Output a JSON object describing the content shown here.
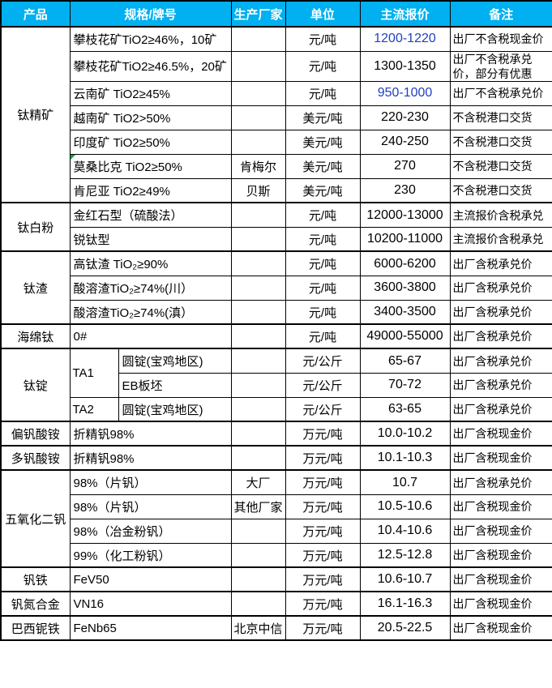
{
  "colors": {
    "header_bg": "#00B0F0",
    "header_text": "#FFFFFF",
    "border": "#000000",
    "highlight_price": "#2040C0",
    "comment_marker": "#00A650"
  },
  "table": {
    "header": {
      "product": "产品",
      "spec": "规格/牌号",
      "manufacturer": "生产厂家",
      "unit": "单位",
      "price": "主流报价",
      "note": "备注"
    },
    "groups": [
      {
        "product": "钛精矿",
        "rows": [
          {
            "spec": "攀枝花矿TiO2≥46%，10矿",
            "maker": "",
            "unit": "元/吨",
            "price": "1200-1220",
            "price_color": "#2040C0",
            "note": "出厂不含税现金价"
          },
          {
            "spec": "攀枝花矿TiO2≥46.5%，20矿",
            "maker": "",
            "unit": "元/吨",
            "price": "1300-1350",
            "note": "出厂不含税承兑价，部分有优惠"
          },
          {
            "spec": "云南矿 TiO2≥45%",
            "maker": "",
            "unit": "元/吨",
            "price": "950-1000",
            "price_color": "#2040C0",
            "note": "出厂不含税承兑价"
          },
          {
            "spec": "越南矿 TiO2>50%",
            "maker": "",
            "unit": "美元/吨",
            "price": "220-230",
            "note": "不含税港口交货"
          },
          {
            "spec": "印度矿 TiO2≥50%",
            "maker": "",
            "unit": "美元/吨",
            "price": "240-250",
            "note": "不含税港口交货"
          },
          {
            "spec": "莫桑比克 TiO2≥50%",
            "maker": "肯梅尔",
            "unit": "美元/吨",
            "price": "270",
            "note": "不含税港口交货",
            "comment_marker": true
          },
          {
            "spec": "肯尼亚 TiO2≥49%",
            "maker": "贝斯",
            "unit": "美元/吨",
            "price": "230",
            "note": "不含税港口交货"
          }
        ]
      },
      {
        "product": "钛白粉",
        "rows": [
          {
            "spec": "金红石型（硫酸法）",
            "maker": "",
            "unit": "元/吨",
            "price": "12000-13000",
            "note": "主流报价含税承兑"
          },
          {
            "spec": "锐钛型",
            "maker": "",
            "unit": "元/吨",
            "price": "10200-11000",
            "note": "主流报价含税承兑"
          }
        ]
      },
      {
        "product": "钛渣",
        "rows": [
          {
            "spec": "高钛渣 TiO₂≥90%",
            "maker": "",
            "unit": "元/吨",
            "price": "6000-6200",
            "note": "出厂含税承兑价"
          },
          {
            "spec": "酸溶渣TiO₂≥74%(川）",
            "maker": "",
            "unit": "元/吨",
            "price": "3600-3800",
            "note": "出厂含税承兑价"
          },
          {
            "spec": "酸溶渣TiO₂≥74%(滇）",
            "maker": "",
            "unit": "元/吨",
            "price": "3400-3500",
            "note": "出厂含税承兑价"
          }
        ]
      },
      {
        "product": "海绵钛",
        "rows": [
          {
            "spec": "0#",
            "maker": "",
            "unit": "元/吨",
            "price": "49000-55000",
            "note": "出厂含税承兑价"
          }
        ]
      },
      {
        "product": "钛锭",
        "rows": [
          {
            "grade": "TA1",
            "spec": "圆锭(宝鸡地区)",
            "maker": "",
            "unit": "元/公斤",
            "price": "65-67",
            "note": "出厂含税承兑价"
          },
          {
            "grade": "TA1",
            "spec": "EB板坯",
            "maker": "",
            "unit": "元/公斤",
            "price": "70-72",
            "note": "出厂含税承兑价"
          },
          {
            "grade": "TA2",
            "spec": "圆锭(宝鸡地区)",
            "maker": "",
            "unit": "元/公斤",
            "price": "63-65",
            "note": "出厂含税承兑价"
          }
        ]
      },
      {
        "product": "偏钒酸铵",
        "rows": [
          {
            "spec": "折精钒98%",
            "maker": "",
            "unit": "万元/吨",
            "price": "10.0-10.2",
            "note": "出厂含税现金价"
          }
        ]
      },
      {
        "product": "多钒酸铵",
        "rows": [
          {
            "spec": "折精钒98%",
            "maker": "",
            "unit": "万元/吨",
            "price": "10.1-10.3",
            "note": "出厂含税现金价"
          }
        ]
      },
      {
        "product": "五氧化二钒",
        "rows": [
          {
            "spec": "98%（片钒）",
            "maker": "大厂",
            "unit": "万元/吨",
            "price": "10.7",
            "note": "出厂含税承兑价"
          },
          {
            "spec": "98%（片钒）",
            "maker": "其他厂家",
            "unit": "万元/吨",
            "price": "10.5-10.6",
            "note": "出厂含税现金价"
          },
          {
            "spec": "98%（冶金粉钒）",
            "maker": "",
            "unit": "万元/吨",
            "price": "10.4-10.6",
            "note": "出厂含税现金价"
          },
          {
            "spec": "99%（化工粉钒）",
            "maker": "",
            "unit": "万元/吨",
            "price": "12.5-12.8",
            "note": "出厂含税现金价"
          }
        ]
      },
      {
        "product": "钒铁",
        "rows": [
          {
            "spec": "FeV50",
            "maker": "",
            "unit": "万元/吨",
            "price": "10.6-10.7",
            "note": "出厂含税现金价"
          }
        ]
      },
      {
        "product": "钒氮合金",
        "rows": [
          {
            "spec": "VN16",
            "maker": "",
            "unit": "万元/吨",
            "price": "16.1-16.3",
            "note": "出厂含税现金价"
          }
        ]
      },
      {
        "product": "巴西铌铁",
        "rows": [
          {
            "spec": "FeNb65",
            "maker": "北京中信",
            "unit": "万元/吨",
            "price": "20.5-22.5",
            "note": "出厂含税现金价"
          }
        ]
      }
    ]
  }
}
